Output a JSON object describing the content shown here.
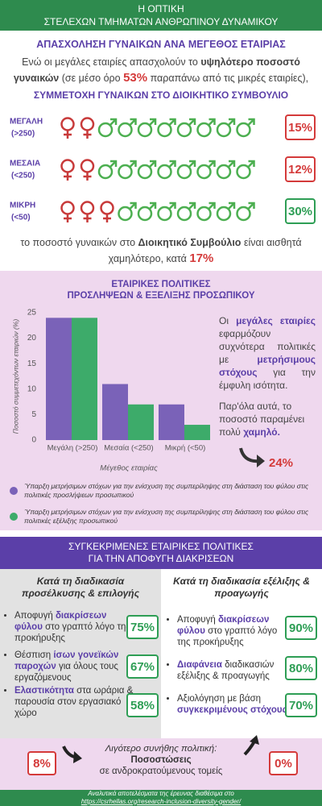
{
  "header": {
    "line1": "Η ΟΠΤΙΚΗ",
    "line2": "ΣΤΕΛΕΧΩΝ ΤΜΗΜΑΤΩΝ ΑΝΘΡΩΠΙΝΟΥ ΔΥΝΑΜΙΚΟΥ"
  },
  "employment": {
    "title": "ΑΠΑΣΧΟΛΗΣΗ ΓΥΝΑΙΚΩΝ ΑΝΑ ΜΕΓΕΘΟΣ ΕΤΑΙΡΙΑΣ",
    "text": [
      "Ενώ οι μεγάλες εταιρίες απασχολούν το",
      "υψηλότερο ποσοστό γυναικών",
      "(σε μέσο όρο",
      "53%",
      "παραπάνω από τις μικρές εταιρίες),"
    ]
  },
  "board": {
    "title": "ΣΥΜΜΕΤΟΧΗ ΓΥΝΑΙΚΩΝ ΣΤΟ ΔΙΟΙΚΗΤΙΚΟ ΣΥΜΒΟΥΛΙΟ",
    "rows": [
      {
        "label": "ΜΕΓΑΛΗ",
        "sub": "(>250)",
        "female": 2,
        "male": 8,
        "percent": "15%"
      },
      {
        "label": "ΜΕΣΑΙΑ",
        "sub": "(<250)",
        "female": 2,
        "male": 8,
        "percent": "12%"
      },
      {
        "label": "ΜΙΚΡΗ",
        "sub": "(<50)",
        "female": 3,
        "male": 7,
        "percent": "30%"
      }
    ],
    "conclusion": [
      "το ποσοστό γυναικών στο",
      "Διοικητικό Συμβούλιο",
      "είναι αισθητά χαμηλότερο, κατά",
      "17%"
    ]
  },
  "chart_data": {
    "type": "bar",
    "title": [
      "ΕΤΑΙΡΙΚΕΣ ΠΟΛΙΤΙΚΕΣ",
      "ΠΡΟΣΛΗΨΕΩΝ & ΕΞΕΛΙΞΗΣ ΠΡΟΣΩΠΙΚΟΥ"
    ],
    "categories": [
      "Μεγάλη (>250)",
      "Μεσαία (<250)",
      "Μικρή (<50)"
    ],
    "series": [
      {
        "name": "Ύπαρξη μετρήσιμων στόχων για την ενίσχυση της συμπερίληψης στη διάσταση του φύλου στις πολιτικές προσλήψεων προσωπικού",
        "color": "#7a62b8",
        "values": [
          24,
          11,
          7
        ]
      },
      {
        "name": "Ύπαρξη μετρήσιμων στόχων για την ενίσχυση της συμπερίληψης στη διάσταση του φύλου στις πολιτικές εξέλιξης προσωπικού",
        "color": "#3dab6a",
        "values": [
          24,
          7,
          3
        ]
      }
    ],
    "ylim": [
      0,
      25
    ],
    "yticks": [
      0,
      5,
      10,
      15,
      20,
      25
    ],
    "grid": false,
    "ylabel": "Ποσοστό συμμετεχόντων εταιριών (%)",
    "xlabel": "Μέγεθος εταιρίας"
  },
  "insight": {
    "p1": [
      "Οι",
      "μεγάλες εταιρίες",
      "εφαρμόζουν συχνότερα πολιτικές με",
      "μετρήσιμους στόχους",
      "για την έμφυλη ισότητα."
    ],
    "p2": [
      "Παρ'όλα αυτά, το ποσοστό παραμένει πολύ",
      "χαμηλό."
    ],
    "percent": "24%"
  },
  "policies": {
    "title": [
      "ΣΥΓΚΕΚΡΙΜΕΝΕΣ ΕΤΑΙΡΙΚΕΣ ΠΟΛΙΤΙΚΕΣ",
      "ΓΙΑ ΤΗΝ ΑΠΟΦΥΓΗ ΔΙΑΚΡΙΣΕΩΝ"
    ],
    "left": {
      "heading": "Κατά τη διαδικασία προσέλκυσης & επιλογής",
      "items": [
        {
          "parts": [
            "Αποφυγή",
            "διακρίσεων φύλου",
            "στο γραπτό λόγο της προκήρυξης"
          ],
          "percent": "75%"
        },
        {
          "parts": [
            "Θέσπιση",
            "ίσων γονεϊκών παροχών",
            "για όλους τους εργαζόμενους"
          ],
          "percent": "67%"
        },
        {
          "parts": [
            "Ελαστικότητα",
            "στα ωράρια & παρουσία στον εργασιακό χώρο"
          ],
          "percent": "58%"
        }
      ]
    },
    "right": {
      "heading": "Κατά τη διαδικασία εξέλιξης & προαγωγής",
      "items": [
        {
          "parts": [
            "Αποφυγή",
            "διακρίσεων φύλου",
            "στο γραπτό λόγο της προκήρυξης"
          ],
          "percent": "90%"
        },
        {
          "parts": [
            "Διαφάνεια",
            "διαδικασιών εξέλιξης & προαγωγής"
          ],
          "percent": "80%"
        },
        {
          "parts": [
            "Αξιολόγηση με βάση",
            "συγκεκριμένους στόχους"
          ],
          "percent": "70%"
        }
      ]
    },
    "least": {
      "left_percent": "8%",
      "line1": "Λιγότερο συνήθης πολιτική:",
      "line2": "Ποσοστώσεις",
      "line3": "σε ανδροκρατούμενους τομείς",
      "right_percent": "0%"
    }
  },
  "footer": {
    "line1": "Αναλυτικά αποτελέσματα της έρευνας διαθέσιμα στο",
    "line2": "https://csrhellas.org/research-inclusion-diversity-gender/"
  }
}
